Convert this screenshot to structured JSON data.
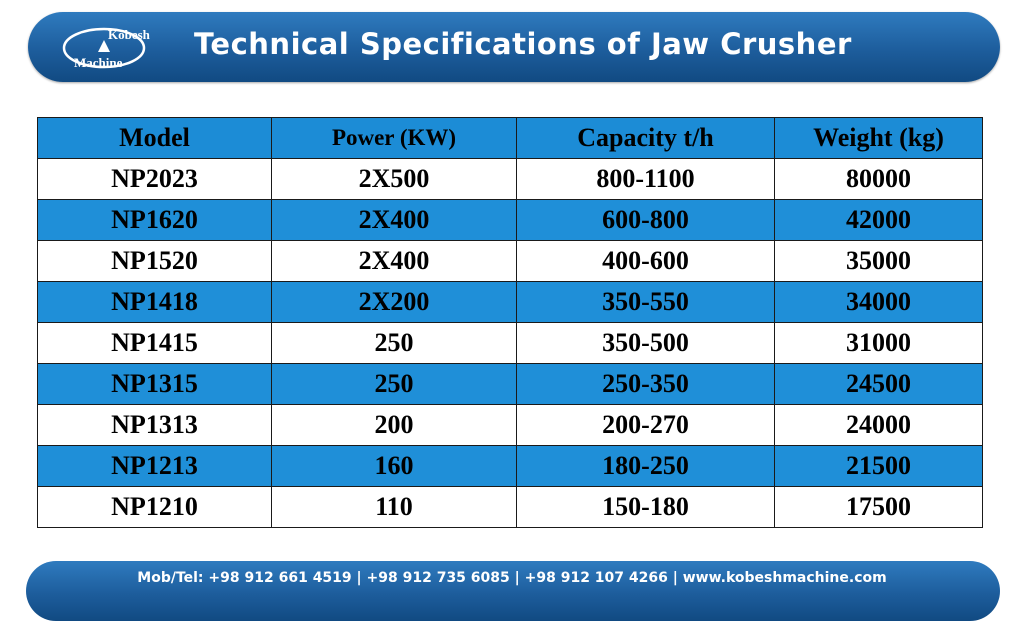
{
  "header": {
    "title": "Technical Specifications of Jaw Crusher",
    "logo_line1": "Kobesh",
    "logo_line2": "Machine",
    "logo_icon": "mountain-swoosh-logo-icon"
  },
  "table": {
    "columns": [
      "Model",
      "Power  (KW)",
      "Capacity t/h",
      "Weight (kg)"
    ],
    "rows": [
      [
        "NP2023",
        "2X500",
        "800-1100",
        "80000"
      ],
      [
        "NP1620",
        "2X400",
        "600-800",
        "42000"
      ],
      [
        "NP1520",
        "2X400",
        "400-600",
        "35000"
      ],
      [
        "NP1418",
        "2X200",
        "350-550",
        "34000"
      ],
      [
        "NP1415",
        "250",
        "350-500",
        "31000"
      ],
      [
        "NP1315",
        "250",
        "250-350",
        "24500"
      ],
      [
        "NP1313",
        "200",
        "200-270",
        "24000"
      ],
      [
        "NP1213",
        "160",
        "180-250",
        "21500"
      ],
      [
        "NP1210",
        "110",
        "150-180",
        "17500"
      ]
    ]
  },
  "footer": {
    "contact": "Mob/Tel: +98 912 661 4519 | +98 912 735 6085 | +98 912 107 4266 | www.kobeshmachine.com"
  },
  "colors": {
    "header_blue": "#1d5d9c",
    "row_blue": "#1f8fd8",
    "row_white": "#ffffff"
  }
}
